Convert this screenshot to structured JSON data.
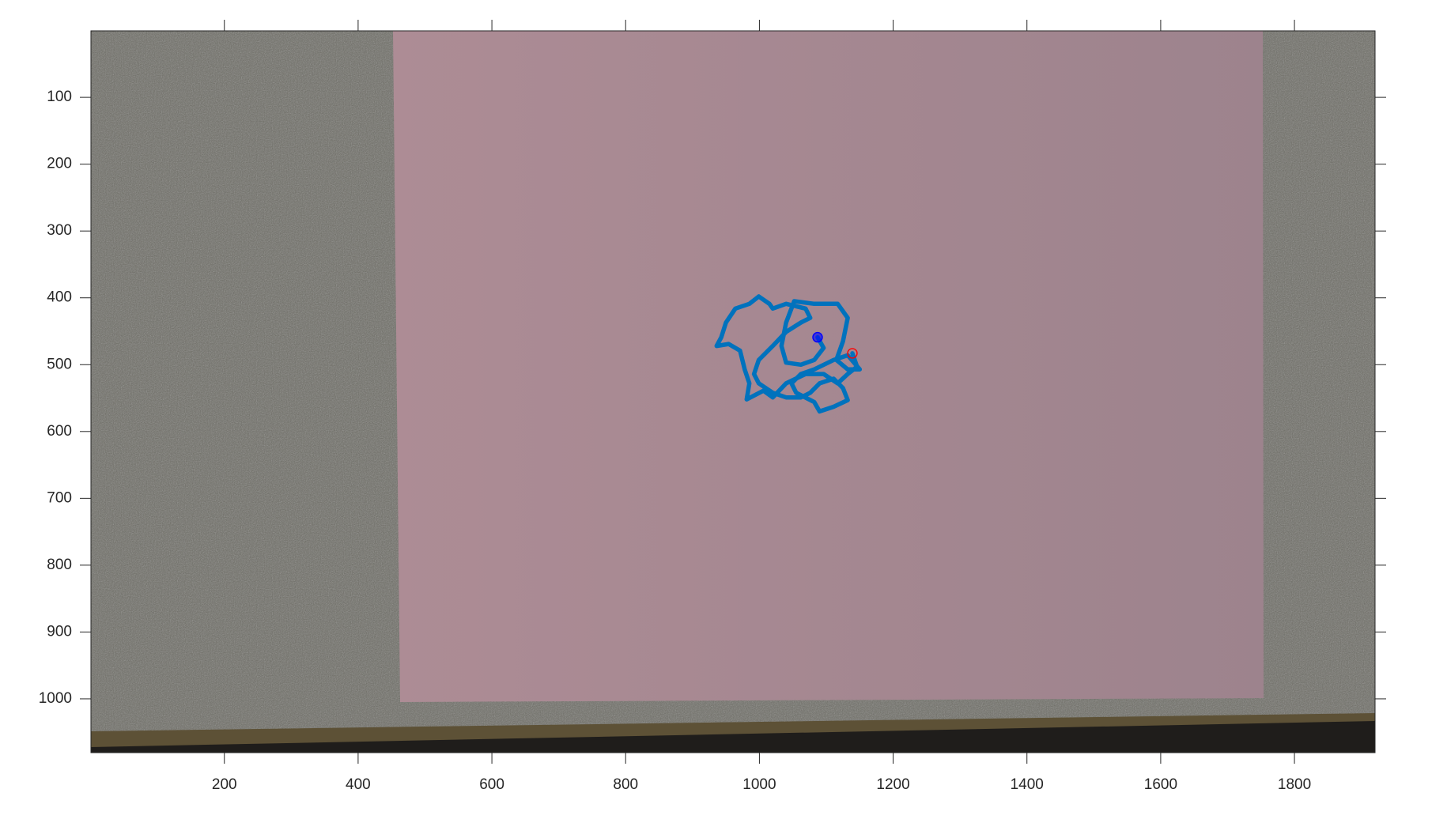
{
  "chart_data": {
    "type": "line",
    "x": [
      1087,
      1096,
      1082,
      1062,
      1040,
      1033,
      1040,
      1052,
      1082,
      1117,
      1132,
      1125,
      1115,
      1132,
      1150,
      1132,
      1111,
      1082,
      1062,
      1048,
      1055,
      1082,
      1090,
      1111,
      1132,
      1125,
      1111,
      1090,
      1076,
      1062,
      1040,
      1020,
      999,
      992,
      999,
      1020,
      1040,
      1062,
      1076,
      1069,
      1040,
      1020,
      1015,
      999,
      985,
      964,
      950,
      943,
      936,
      954,
      971,
      978,
      985,
      981,
      1006,
      1020,
      1040,
      1069,
      1096,
      1117,
      1132,
      1146,
      1139
    ],
    "y": [
      459,
      475,
      493,
      500,
      497,
      472,
      437,
      405,
      409,
      409,
      430,
      465,
      493,
      507,
      507,
      486,
      493,
      507,
      514,
      528,
      542,
      556,
      570,
      563,
      553,
      535,
      521,
      528,
      542,
      549,
      549,
      542,
      528,
      514,
      493,
      472,
      451,
      437,
      430,
      416,
      409,
      416,
      409,
      398,
      409,
      416,
      437,
      459,
      472,
      469,
      479,
      507,
      528,
      552,
      539,
      549,
      528,
      514,
      514,
      528,
      514,
      503,
      483
    ],
    "color": "#0072bd",
    "markers": [
      {
        "x": 1087,
        "y": 459,
        "color": "#0000ff",
        "filled": true
      },
      {
        "x": 1139,
        "y": 483,
        "color": "#ff0000",
        "filled": false
      }
    ],
    "xlim": [
      0.5,
      1920.5
    ],
    "ylim": [
      0.5,
      1080.5
    ],
    "y_reversed": true,
    "xticks": [
      200,
      400,
      600,
      800,
      1000,
      1200,
      1400,
      1600,
      1800
    ],
    "yticks": [
      100,
      200,
      300,
      400,
      500,
      600,
      700,
      800,
      900,
      1000
    ]
  }
}
